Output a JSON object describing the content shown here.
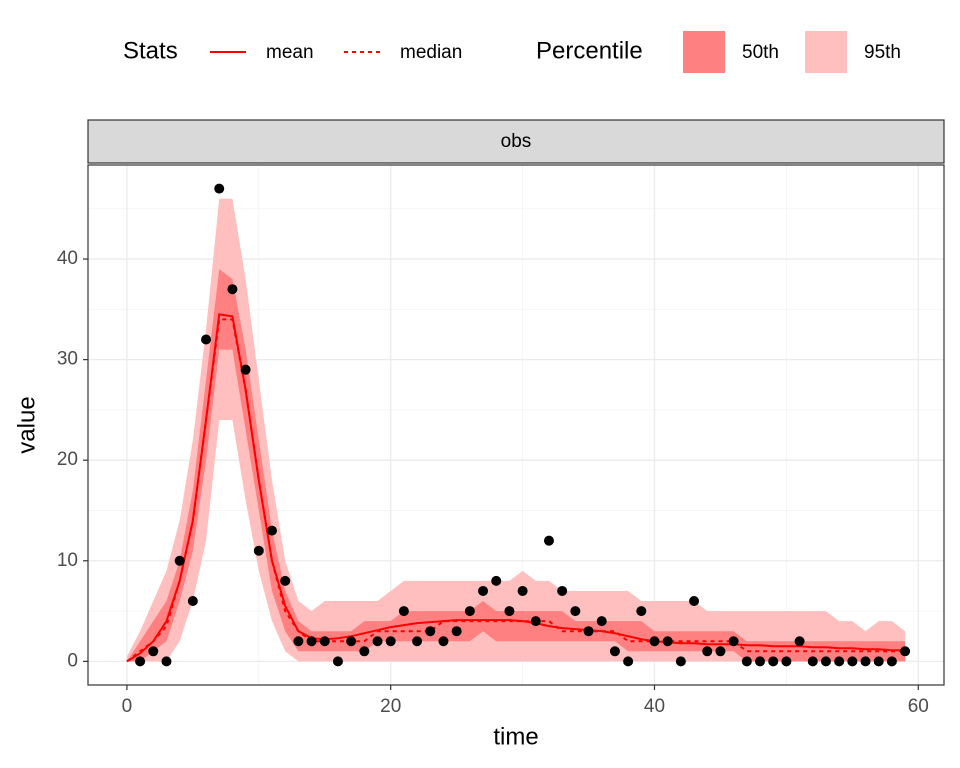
{
  "chart_data": {
    "type": "line",
    "legend_title_stats": "Stats",
    "legend_title_percentile": "Percentile",
    "strip_label": "obs",
    "xlabel": "time",
    "ylabel": "value",
    "xlim": [
      -2.95,
      61.95
    ],
    "ylim": [
      -2.35,
      49.35
    ],
    "xticks": [
      0,
      20,
      40,
      60
    ],
    "yticks": [
      0,
      10,
      20,
      30,
      40
    ],
    "grid": true,
    "x": [
      0,
      1,
      2,
      3,
      4,
      5,
      6,
      7,
      8,
      9,
      10,
      11,
      12,
      13,
      14,
      15,
      16,
      17,
      18,
      19,
      20,
      21,
      22,
      23,
      24,
      25,
      26,
      27,
      28,
      29,
      30,
      31,
      32,
      33,
      34,
      35,
      36,
      37,
      38,
      39,
      40,
      41,
      42,
      43,
      44,
      45,
      46,
      47,
      48,
      49,
      50,
      51,
      52,
      53,
      54,
      55,
      56,
      57,
      58,
      59
    ],
    "bands": [
      {
        "name": "95th",
        "color": "#ffbfbf",
        "upper": [
          0.5,
          3,
          6,
          9,
          14,
          22,
          33,
          46,
          46,
          38,
          28,
          18,
          10,
          6,
          5,
          6,
          6,
          6,
          6,
          6,
          7,
          8,
          8,
          8,
          8,
          8,
          8,
          8,
          8,
          8,
          9,
          8,
          8,
          7,
          7,
          7,
          7,
          7,
          7,
          6,
          6,
          6,
          6,
          6,
          5,
          5,
          5,
          5,
          5,
          5,
          5,
          5,
          5,
          5,
          4,
          4,
          3,
          4,
          4,
          3
        ],
        "lower": [
          0,
          0,
          0,
          0,
          2,
          6,
          12,
          24,
          24,
          16,
          9,
          4,
          1,
          0,
          0,
          0,
          0,
          0,
          0,
          0,
          0,
          0,
          0,
          0,
          0,
          0,
          0,
          0,
          0,
          0,
          0,
          0,
          0,
          0,
          0,
          0,
          0,
          0,
          0,
          0,
          0,
          0,
          0,
          0,
          0,
          0,
          0,
          0,
          0,
          0,
          0,
          0,
          0,
          0,
          0,
          0,
          0,
          0,
          0,
          0
        ]
      },
      {
        "name": "50th",
        "color": "#ff8080",
        "upper": [
          0,
          2,
          4,
          6,
          10,
          17,
          28,
          39,
          38,
          31,
          22,
          13,
          7,
          4,
          3,
          3,
          3,
          3,
          4,
          4,
          4,
          5,
          5,
          5,
          5,
          5,
          5,
          6,
          5,
          5,
          5,
          5,
          5,
          5,
          4,
          4,
          4,
          4,
          4,
          4,
          3,
          3,
          3,
          3,
          3,
          3,
          3,
          2,
          2,
          2,
          2,
          2,
          2,
          2,
          2,
          2,
          2,
          2,
          2,
          2
        ],
        "lower": [
          0,
          0,
          1,
          2,
          6,
          11,
          20,
          31,
          31,
          23,
          15,
          7,
          3,
          1,
          1,
          1,
          1,
          1,
          1,
          2,
          2,
          2,
          2,
          2,
          2,
          2,
          2,
          3,
          2,
          2,
          2,
          2,
          2,
          2,
          2,
          2,
          2,
          2,
          1,
          1,
          1,
          1,
          1,
          1,
          1,
          1,
          1,
          0,
          0,
          0,
          0,
          0,
          0,
          0,
          0,
          0,
          0,
          0,
          0,
          0
        ]
      }
    ],
    "series": [
      {
        "name": "mean",
        "color": "#ff0000",
        "dash": "solid",
        "values": [
          0,
          0.8,
          2,
          4,
          8,
          14,
          24,
          34.5,
          34.3,
          27,
          18,
          10,
          5.5,
          3,
          2.3,
          2.2,
          2.3,
          2.5,
          2.8,
          3.1,
          3.4,
          3.6,
          3.8,
          3.9,
          4,
          4.1,
          4.1,
          4.1,
          4.1,
          4.1,
          4,
          3.8,
          3.5,
          3.3,
          3.2,
          3.1,
          3,
          2.8,
          2.5,
          2.2,
          2,
          1.9,
          1.8,
          1.8,
          1.7,
          1.7,
          1.7,
          1.6,
          1.6,
          1.5,
          1.5,
          1.5,
          1.4,
          1.4,
          1.3,
          1.3,
          1.2,
          1.2,
          1.1,
          1.1
        ]
      },
      {
        "name": "median",
        "color": "#ff0000",
        "dash": "dashed",
        "values": [
          0,
          1,
          2,
          3.5,
          8,
          14,
          24,
          34,
          34,
          27,
          18,
          10,
          5,
          3,
          2,
          2,
          2,
          2,
          2,
          3,
          3,
          3,
          3,
          3,
          4,
          4,
          4,
          4,
          4,
          4,
          4,
          4,
          4,
          3,
          3,
          3,
          3,
          3,
          2,
          2,
          2,
          2,
          2,
          2,
          2,
          2,
          2,
          1,
          1,
          1,
          1,
          1,
          1,
          1,
          1,
          1,
          1,
          1,
          1,
          1
        ]
      }
    ],
    "points": {
      "color": "#000000",
      "x": [
        1,
        2,
        3,
        4,
        5,
        6,
        7,
        8,
        9,
        10,
        11,
        12,
        13,
        14,
        15,
        16,
        17,
        18,
        19,
        20,
        21,
        22,
        23,
        24,
        25,
        26,
        27,
        28,
        29,
        30,
        31,
        32,
        33,
        34,
        35,
        36,
        37,
        38,
        39,
        40,
        41,
        42,
        43,
        44,
        45,
        46,
        47,
        48,
        49,
        50,
        51,
        52,
        53,
        54,
        55,
        56,
        57,
        58,
        59
      ],
      "values": [
        0,
        1,
        0,
        10,
        6,
        32,
        47,
        37,
        29,
        11,
        13,
        8,
        2,
        2,
        2,
        0,
        2,
        1,
        2,
        2,
        5,
        2,
        3,
        2,
        3,
        5,
        7,
        8,
        5,
        7,
        4,
        12,
        7,
        5,
        3,
        4,
        1,
        0,
        5,
        2,
        2,
        0,
        6,
        1,
        1,
        2,
        0,
        0,
        0,
        0,
        2,
        0,
        0,
        0,
        0,
        0,
        0,
        0,
        1
      ]
    }
  }
}
